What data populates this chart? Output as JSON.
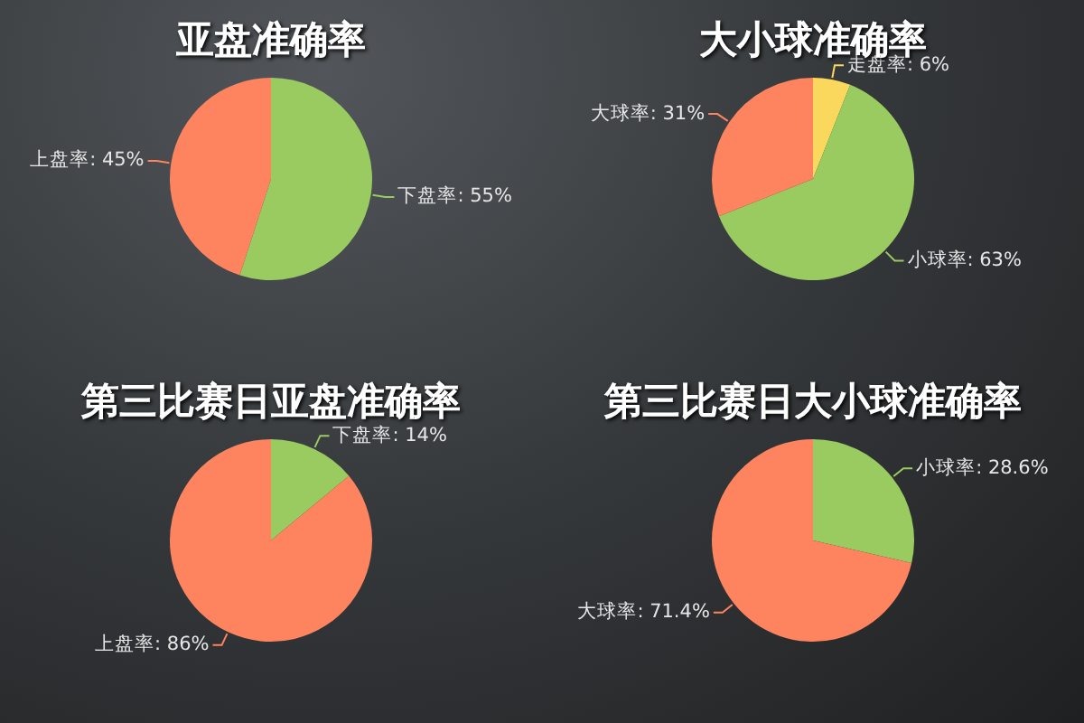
{
  "chart_data": [
    {
      "type": "pie",
      "title": "亚盘准确率",
      "categories": [
        "下盘率",
        "上盘率"
      ],
      "values": [
        55,
        45
      ],
      "value_labels": [
        "55%",
        "45%"
      ],
      "colors": [
        "#9acb60",
        "#fe8460"
      ]
    },
    {
      "type": "pie",
      "title": "大小球准确率",
      "categories": [
        "走盘率",
        "小球率",
        "大球率"
      ],
      "values": [
        6,
        63,
        31
      ],
      "value_labels": [
        "6%",
        "63%",
        "31%"
      ],
      "colors": [
        "#fad85e",
        "#9acb60",
        "#fe8460"
      ]
    },
    {
      "type": "pie",
      "title": "第三比赛日亚盘准确率",
      "categories": [
        "下盘率",
        "上盘率"
      ],
      "values": [
        14,
        86
      ],
      "value_labels": [
        "14%",
        "86%"
      ],
      "colors": [
        "#9acb60",
        "#fe8460"
      ]
    },
    {
      "type": "pie",
      "title": "第三比赛日大小球准确率",
      "categories": [
        "小球率",
        "大球率"
      ],
      "values": [
        28.6,
        71.4
      ],
      "value_labels": [
        "28.6%",
        "71.4%"
      ],
      "colors": [
        "#9acb60",
        "#fe8460"
      ]
    }
  ]
}
